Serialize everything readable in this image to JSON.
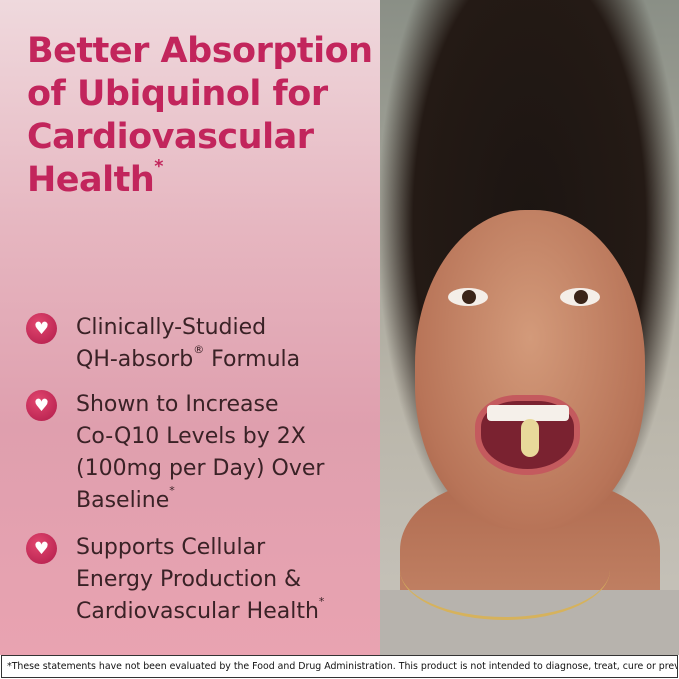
{
  "headline": "Better Absorption of Ubiquinol for Cardiovascular Health",
  "headline_mark": "*",
  "benefits": [
    {
      "icon": "heart-icon",
      "line1": "Clinically-Studied",
      "line2a": "QH-absorb",
      "reg": "®",
      "line2b": " Formula"
    },
    {
      "icon": "heart-icon",
      "lines": [
        "Shown to Increase",
        "Co-Q10 Levels by 2X",
        "(100mg per Day) Over"
      ],
      "last": "Baseline",
      "mark": "*"
    },
    {
      "icon": "heart-icon",
      "lines": [
        "Supports Cellular",
        "Energy Production &"
      ],
      "last": "Cardiovascular Health",
      "mark": "*"
    }
  ],
  "disclaimer": "*These statements have not been evaluated by the Food and Drug Administration. This product is not intended to diagnose, treat, cure or prevent any disease.",
  "colors": {
    "headline": "#c2255c",
    "icon": "#c42256",
    "body_text": "#3a2226"
  }
}
